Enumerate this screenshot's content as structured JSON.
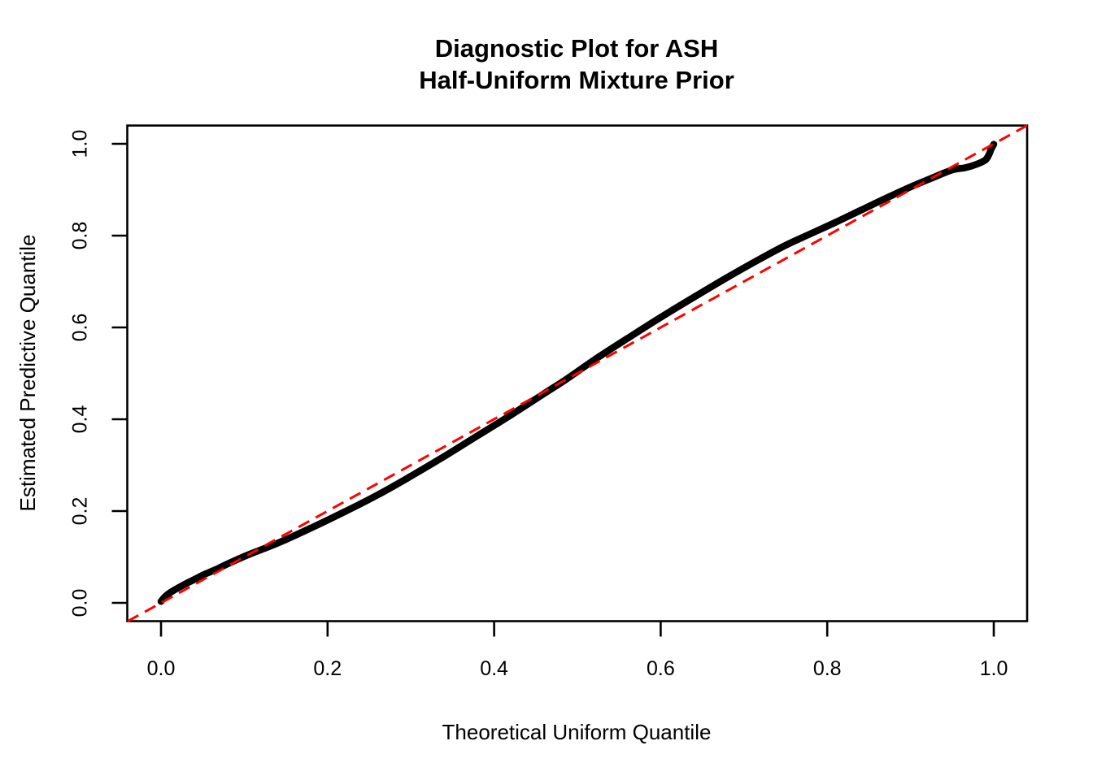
{
  "title": {
    "line1": "Diagnostic Plot for ASH",
    "line2": "Half-Uniform Mixture Prior"
  },
  "colors": {
    "curve": "#000000",
    "reference_line": "#FF0000",
    "axis": "#000000",
    "background": "#FFFFFF"
  },
  "chart_data": {
    "type": "line",
    "title": "Diagnostic Plot for ASH / Half-Uniform Mixture Prior",
    "xlabel": "Theoretical Uniform Quantile",
    "ylabel": "Estimated Predictive Quantile",
    "xlim": [
      -0.04,
      1.04
    ],
    "ylim": [
      -0.04,
      1.04
    ],
    "grid": false,
    "legend": "none",
    "x_ticks": {
      "values": [
        0.0,
        0.2,
        0.4,
        0.6,
        0.8,
        1.0
      ],
      "labels": [
        "0.0",
        "0.2",
        "0.4",
        "0.6",
        "0.8",
        "1.0"
      ]
    },
    "y_ticks": {
      "values": [
        0.0,
        0.2,
        0.4,
        0.6,
        0.8,
        1.0
      ],
      "labels": [
        "0.0",
        "0.2",
        "0.4",
        "0.6",
        "0.8",
        "1.0"
      ]
    },
    "series": [
      {
        "name": "estimated-predictive-quantile-curve",
        "type": "thick-line",
        "color": "#000000",
        "line_style": "solid",
        "points": [
          [
            0.0,
            0.003
          ],
          [
            0.004,
            0.012
          ],
          [
            0.01,
            0.021
          ],
          [
            0.018,
            0.03
          ],
          [
            0.028,
            0.04
          ],
          [
            0.04,
            0.051
          ],
          [
            0.052,
            0.062
          ],
          [
            0.065,
            0.072
          ],
          [
            0.08,
            0.085
          ],
          [
            0.105,
            0.105
          ],
          [
            0.14,
            0.13
          ],
          [
            0.18,
            0.163
          ],
          [
            0.22,
            0.198
          ],
          [
            0.26,
            0.235
          ],
          [
            0.3,
            0.276
          ],
          [
            0.34,
            0.319
          ],
          [
            0.38,
            0.364
          ],
          [
            0.42,
            0.409
          ],
          [
            0.46,
            0.456
          ],
          [
            0.485,
            0.485
          ],
          [
            0.52,
            0.529
          ],
          [
            0.56,
            0.576
          ],
          [
            0.6,
            0.622
          ],
          [
            0.64,
            0.666
          ],
          [
            0.68,
            0.709
          ],
          [
            0.72,
            0.75
          ],
          [
            0.75,
            0.779
          ],
          [
            0.78,
            0.804
          ],
          [
            0.81,
            0.829
          ],
          [
            0.84,
            0.855
          ],
          [
            0.87,
            0.881
          ],
          [
            0.9,
            0.906
          ],
          [
            0.925,
            0.925
          ],
          [
            0.95,
            0.943
          ],
          [
            0.966,
            0.948
          ],
          [
            0.98,
            0.956
          ],
          [
            0.99,
            0.965
          ],
          [
            0.994,
            0.976
          ],
          [
            0.997,
            0.989
          ],
          [
            1.0,
            0.999
          ]
        ]
      },
      {
        "name": "identity-reference-line",
        "type": "line",
        "color": "#FF0000",
        "line_style": "dashed",
        "points": [
          [
            -0.04,
            -0.04
          ],
          [
            1.04,
            1.04
          ]
        ]
      }
    ]
  }
}
